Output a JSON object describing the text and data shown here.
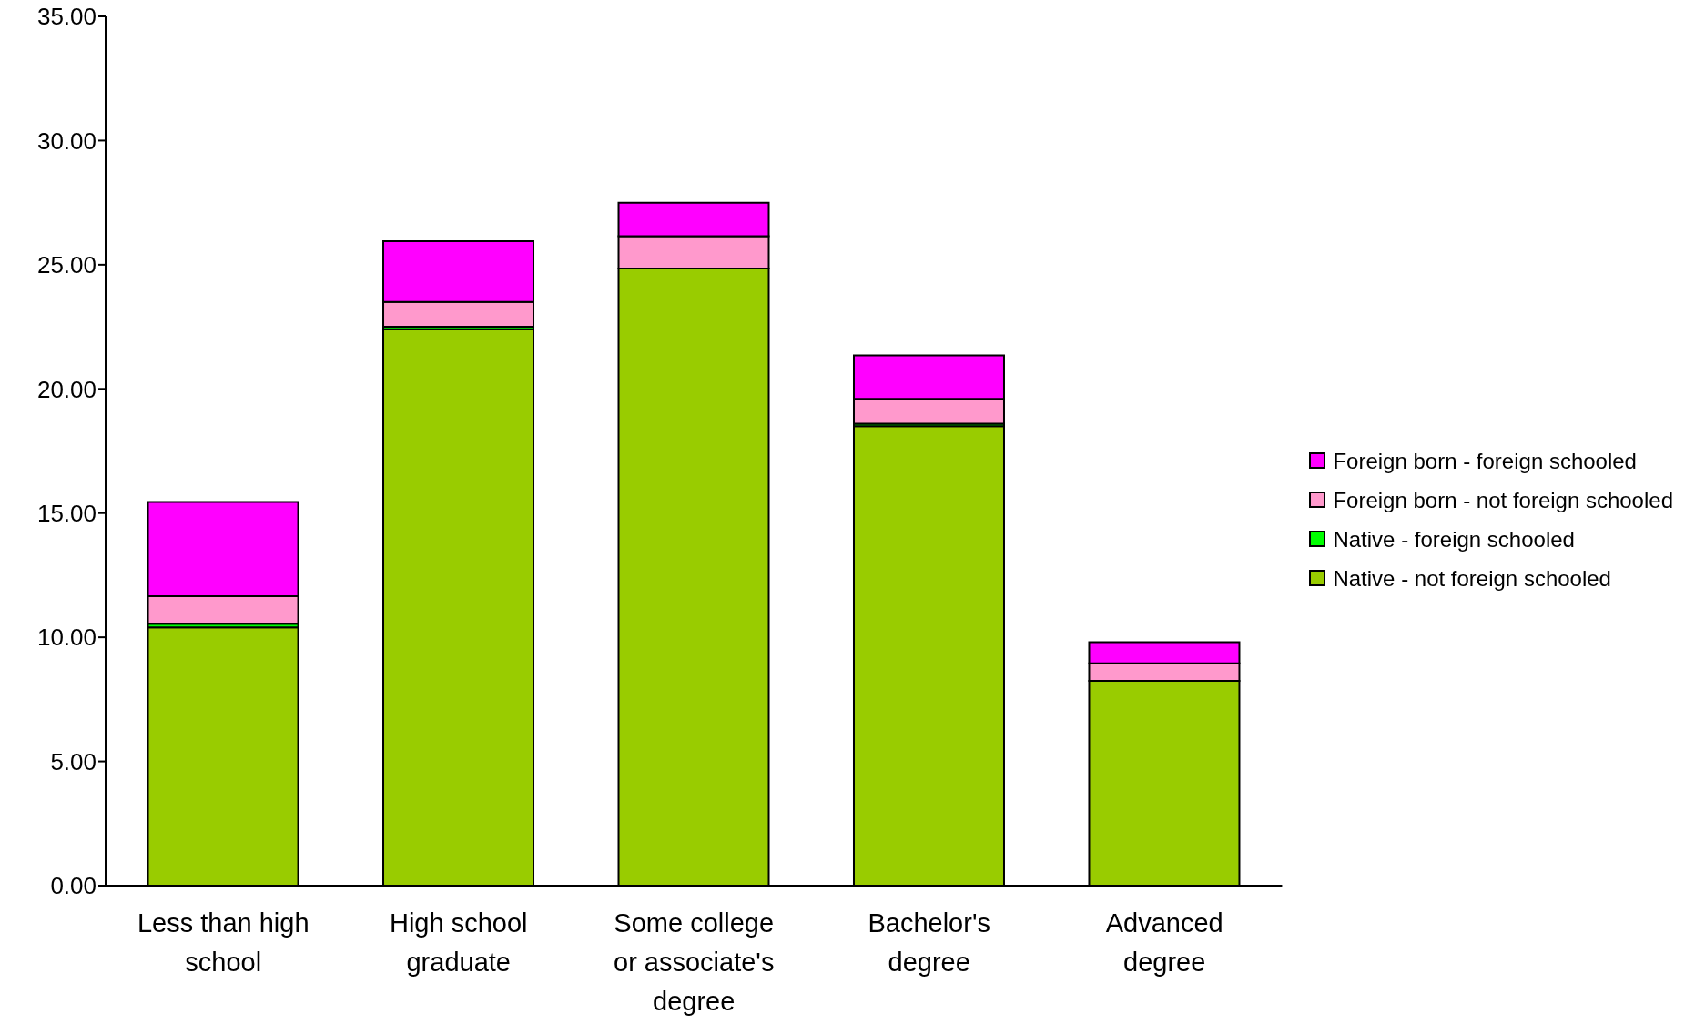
{
  "chart_data": {
    "type": "bar",
    "stacked": true,
    "categories": [
      "Less than high school",
      "High school graduate",
      "Some college or associate's degree",
      "Bachelor's degree",
      "Advanced degree"
    ],
    "series": [
      {
        "name": "Native - not foreign schooled",
        "color": "#99cc00",
        "values": [
          10.4,
          22.4,
          24.85,
          18.5,
          8.25
        ]
      },
      {
        "name": "Native - foreign schooled",
        "color": "#00ff00",
        "values": [
          0.15,
          0.1,
          null,
          0.1,
          null
        ]
      },
      {
        "name": "Foreign born - not foreign schooled",
        "color": "#ff99cc",
        "values": [
          1.1,
          1.0,
          1.3,
          1.0,
          0.7
        ]
      },
      {
        "name": "Foreign born - foreign schooled",
        "color": "#ff00ff",
        "values": [
          3.8,
          2.45,
          1.35,
          1.75,
          0.85
        ]
      }
    ],
    "ylim": [
      0,
      35
    ],
    "yticks": [
      {
        "value": 0,
        "label": "0.00"
      },
      {
        "value": 5,
        "label": "5.00"
      },
      {
        "value": 10,
        "label": "10.00"
      },
      {
        "value": 15,
        "label": "15.00"
      },
      {
        "value": 20,
        "label": "20.00"
      },
      {
        "value": 25,
        "label": "25.00"
      },
      {
        "value": 30,
        "label": "30.00"
      },
      {
        "value": 35,
        "label": "35.00"
      }
    ],
    "grid": false,
    "legend": "right"
  }
}
